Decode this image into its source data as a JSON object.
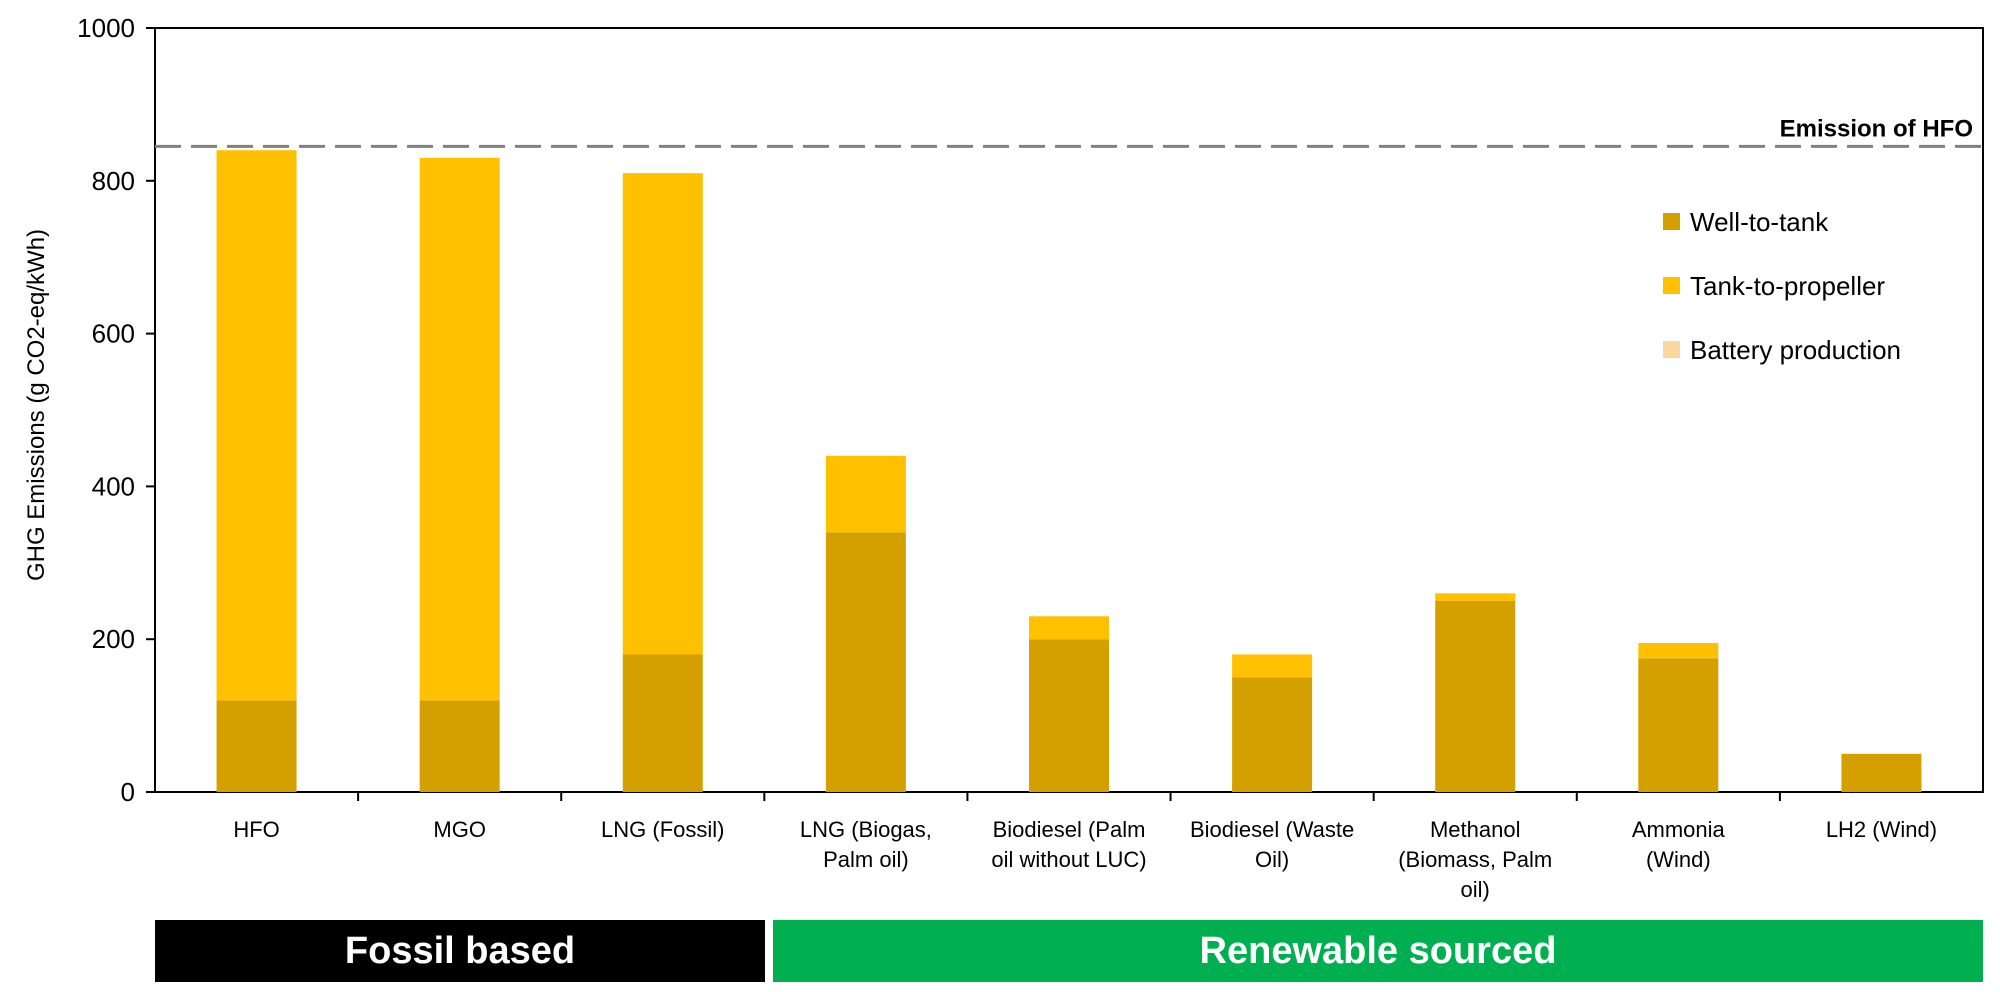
{
  "chart_data": {
    "type": "bar",
    "stacked": true,
    "title": "",
    "xlabel": "",
    "ylabel": "GHG Emissions (g CO2-eq/kWh)",
    "ylim": [
      0,
      1000
    ],
    "yticks": [
      0,
      200,
      400,
      600,
      800,
      1000
    ],
    "grid": false,
    "legend_position": "top-right",
    "categories": [
      [
        "HFO"
      ],
      [
        "MGO"
      ],
      [
        "LNG (Fossil)"
      ],
      [
        "LNG (Biogas,",
        "Palm oil)"
      ],
      [
        "Biodiesel (Palm",
        "oil without LUC)"
      ],
      [
        "Biodiesel (Waste",
        "Oil)"
      ],
      [
        "Methanol",
        "(Biomass, Palm",
        "oil)"
      ],
      [
        "Ammonia",
        "(Wind)"
      ],
      [
        "LH2 (Wind)"
      ]
    ],
    "series": [
      {
        "name": "Well-to-tank",
        "color": "#D4A000",
        "values": [
          120,
          120,
          180,
          340,
          200,
          150,
          250,
          175,
          50
        ]
      },
      {
        "name": "Tank-to-propeller",
        "color": "#FFC000",
        "values": [
          720,
          710,
          630,
          100,
          30,
          30,
          10,
          20,
          0
        ]
      },
      {
        "name": "Battery production",
        "color": "#FAD79F",
        "values": [
          0,
          0,
          0,
          0,
          0,
          0,
          0,
          0,
          0
        ]
      }
    ],
    "reference_line": {
      "label": "Emission of HFO",
      "value": 845
    },
    "groups": [
      {
        "label": "Fossil based",
        "color": "#000000"
      },
      {
        "label": "Renewable sourced",
        "color": "#00B050"
      }
    ]
  }
}
